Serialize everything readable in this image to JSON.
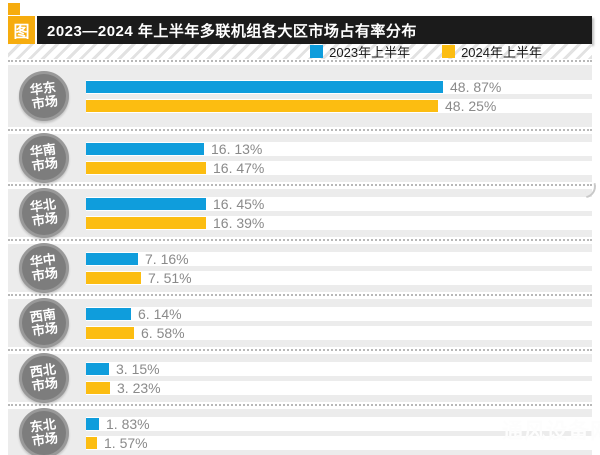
{
  "header": {
    "badge": "图",
    "title": "2023—2024 年上半年多联机组各大区市场占有率分布"
  },
  "legend": [
    {
      "label": "2023年上半年",
      "color": "#0f9ddc"
    },
    {
      "label": "2024年上半年",
      "color": "#fcbd11"
    }
  ],
  "watermark": "通风设备网",
  "colors": {
    "series_2023": "#0f9ddc",
    "series_2024": "#fcbd11",
    "badge_amber": "#f6ac0e",
    "header_black": "#1b1b1b",
    "block_gray": "#ececec",
    "circle_gray": "#7d7d7d",
    "value_text": "#8a8a8a"
  },
  "chart_data": {
    "type": "bar",
    "orientation": "horizontal",
    "title": "2023—2024 年上半年多联机组各大区市场占有率分布",
    "categories": [
      "华东市场",
      "华南市场",
      "华北市场",
      "华中市场",
      "西南市场",
      "西北市场",
      "东北市场"
    ],
    "series": [
      {
        "name": "2023年上半年",
        "color": "#0f9ddc",
        "values": [
          48.87,
          16.13,
          16.45,
          7.16,
          6.14,
          3.15,
          1.83
        ]
      },
      {
        "name": "2024年上半年",
        "color": "#fcbd11",
        "values": [
          48.25,
          16.47,
          16.39,
          7.51,
          6.58,
          3.23,
          1.57
        ]
      }
    ],
    "value_suffix": "%",
    "xlim": [
      0,
      69
    ],
    "grid": false,
    "legend_position": "top-right",
    "value_labels": "outside-end"
  }
}
